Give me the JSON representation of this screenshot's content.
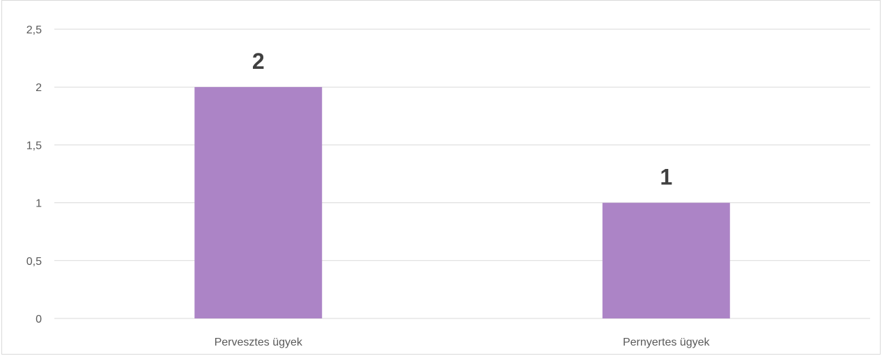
{
  "chart_data": {
    "type": "bar",
    "categories": [
      "Pervesztes ügyek",
      "Pernyertes ügyek"
    ],
    "values": [
      2,
      1
    ],
    "data_labels": [
      "2",
      "1"
    ],
    "title": "",
    "xlabel": "",
    "ylabel": "",
    "ylim": [
      0,
      2.5
    ],
    "yticks": [
      0,
      0.5,
      1,
      1.5,
      2,
      2.5
    ],
    "ytick_labels": [
      "0",
      "0,5",
      "1",
      "1,5",
      "2",
      "2,5"
    ],
    "grid": true,
    "legend": "none",
    "bar_color": "#ac84c6",
    "grid_color": "#d9d9d9"
  }
}
